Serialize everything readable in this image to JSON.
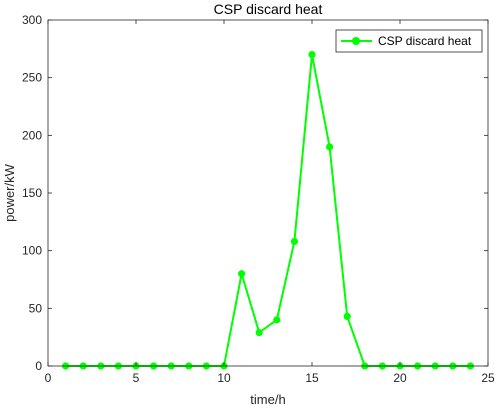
{
  "chart_data": {
    "type": "line",
    "title": "CSP discard heat",
    "xlabel": "time/h",
    "ylabel": "power/kW",
    "xlim": [
      0,
      25
    ],
    "ylim": [
      0,
      300
    ],
    "xticks": [
      0,
      5,
      10,
      15,
      20,
      25
    ],
    "yticks": [
      0,
      50,
      100,
      150,
      200,
      250,
      300
    ],
    "grid": false,
    "legend_position": "top-right",
    "series": [
      {
        "name": "CSP discard heat",
        "color": "#00ff00",
        "marker": "circle",
        "x": [
          1,
          2,
          3,
          4,
          5,
          6,
          7,
          8,
          9,
          10,
          11,
          12,
          13,
          14,
          15,
          16,
          17,
          18,
          19,
          20,
          21,
          22,
          23,
          24
        ],
        "y": [
          0,
          0,
          0,
          0,
          0,
          0,
          0,
          0,
          0,
          0,
          80,
          29,
          40,
          108,
          270,
          190,
          43,
          0,
          0,
          0,
          0,
          0,
          0,
          0
        ]
      }
    ]
  }
}
